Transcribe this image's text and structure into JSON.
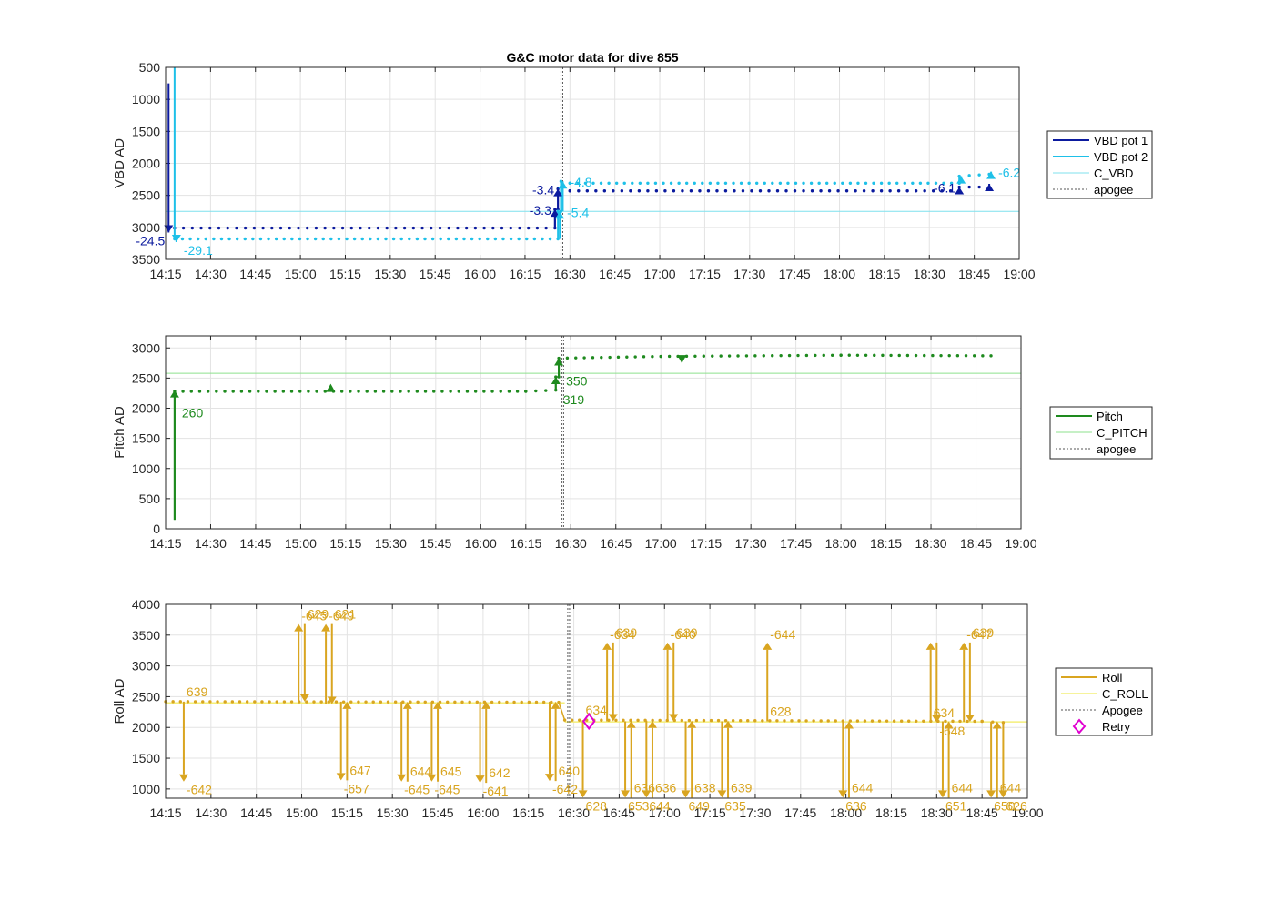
{
  "title": "G&C motor data for dive 855",
  "x_tick_labels": [
    "14:15",
    "14:30",
    "14:45",
    "15:00",
    "15:15",
    "15:30",
    "15:45",
    "16:00",
    "16:15",
    "16:30",
    "16:45",
    "17:00",
    "17:15",
    "17:30",
    "17:45",
    "18:00",
    "18:15",
    "18:30",
    "18:45",
    "19:00"
  ],
  "colors": {
    "vbd1": "#0b1a9e",
    "vbd2": "#1ec0e8",
    "cvbd": "#7fe1ee",
    "pitch": "#1e8a1e",
    "cpitch": "#8ee08e",
    "roll": "#d9a520",
    "croll": "#f4ef7a",
    "retry": "#e000d0",
    "apogee": "#555555"
  },
  "chart_data": [
    {
      "type": "line",
      "title": "G&C motor data for dive 855",
      "ylabel": "VBD AD",
      "x_range": [
        "14:15",
        "19:00"
      ],
      "y_range": [
        500,
        3500
      ],
      "y_reversed": true,
      "y_ticks": [
        500,
        1000,
        1500,
        2000,
        2500,
        3000,
        3500
      ],
      "grid": true,
      "apogee": "16:27",
      "legend": {
        "placement": "right",
        "entries": [
          "VBD pot 1",
          "VBD pot 2",
          "C_VBD",
          "apogee"
        ]
      },
      "reference": {
        "name": "C_VBD",
        "value": 2750
      },
      "series": [
        {
          "name": "VBD pot 1",
          "points": [
            [
              "14:16",
              750
            ],
            [
              "14:16",
              3000
            ],
            [
              "14:18",
              3010
            ],
            [
              "16:25",
              3010
            ],
            [
              "16:25",
              2720
            ],
            [
              "16:26",
              2720
            ],
            [
              "16:26",
              2400
            ],
            [
              "16:30",
              2430
            ],
            [
              "18:40",
              2430
            ],
            [
              "18:40",
              2370
            ],
            [
              "18:50",
              2370
            ]
          ]
        },
        {
          "name": "VBD pot 2",
          "points": [
            [
              "14:18",
              500
            ],
            [
              "14:18",
              3180
            ],
            [
              "16:26",
              3180
            ],
            [
              "16:26",
              2750
            ],
            [
              "16:27",
              2750
            ],
            [
              "16:27",
              2280
            ],
            [
              "16:30",
              2310
            ],
            [
              "18:40",
              2310
            ],
            [
              "18:40",
              2200
            ],
            [
              "18:50",
              2170
            ]
          ]
        }
      ],
      "arrows": [
        {
          "series": 0,
          "x": "14:16",
          "from": 3000,
          "to": 3080,
          "label": "-24.5"
        },
        {
          "series": 1,
          "x": "14:18",
          "from": 3180,
          "to": 3230,
          "label": "-29.1"
        },
        {
          "series": 0,
          "x": "16:25",
          "from": 3010,
          "to": 2720,
          "label": "-3.3"
        },
        {
          "series": 0,
          "x": "16:26",
          "from": 2720,
          "to": 2400,
          "label": "-3.4"
        },
        {
          "series": 1,
          "x": "16:26",
          "from": 3180,
          "to": 2750,
          "label": "-5.4"
        },
        {
          "series": 1,
          "x": "16:27",
          "from": 2750,
          "to": 2280,
          "label": "-4.8"
        },
        {
          "series": 0,
          "x": "18:40",
          "from": 2430,
          "to": 2370,
          "label": "-6.1"
        },
        {
          "series": 1,
          "x": "18:40",
          "from": 2310,
          "to": 2200,
          "label": ""
        },
        {
          "series": 0,
          "x": "18:50",
          "from": 2370,
          "to": 2320,
          "label": ""
        },
        {
          "series": 1,
          "x": "18:50",
          "from": 2170,
          "to": 2130,
          "label": "-6.2"
        }
      ]
    },
    {
      "type": "line",
      "ylabel": "Pitch AD",
      "x_range": [
        "14:15",
        "19:00"
      ],
      "y_range": [
        0,
        3200
      ],
      "y_ticks": [
        0,
        500,
        1000,
        1500,
        2000,
        2500,
        3000
      ],
      "grid": true,
      "apogee": "16:27",
      "legend": {
        "placement": "right",
        "entries": [
          "Pitch",
          "C_PITCH",
          "apogee"
        ]
      },
      "reference": {
        "name": "C_PITCH",
        "value": 2580
      },
      "series": [
        {
          "name": "Pitch",
          "points": [
            [
              "14:18",
              150
            ],
            [
              "14:18",
              2280
            ],
            [
              "16:15",
              2280
            ],
            [
              "16:25",
              2300
            ],
            [
              "16:25",
              2520
            ],
            [
              "16:26",
              2520
            ],
            [
              "16:26",
              2830
            ],
            [
              "17:00",
              2860
            ],
            [
              "18:00",
              2880
            ],
            [
              "18:50",
              2870
            ]
          ]
        }
      ],
      "arrows": [
        {
          "x": "14:18",
          "from": 150,
          "to": 2300,
          "label": "260"
        },
        {
          "x": "16:25",
          "from": 2300,
          "to": 2520,
          "label": "319"
        },
        {
          "x": "16:26",
          "from": 2520,
          "to": 2830,
          "label": "350"
        }
      ],
      "markers": [
        {
          "x": "15:10",
          "y": 2330,
          "dir": "up"
        },
        {
          "x": "17:07",
          "y": 2820,
          "dir": "down"
        }
      ]
    },
    {
      "type": "line",
      "ylabel": "Roll AD",
      "x_range": [
        "14:15",
        "19:00"
      ],
      "y_range": [
        850,
        4000
      ],
      "y_ticks": [
        1000,
        1500,
        2000,
        2500,
        3000,
        3500,
        4000
      ],
      "grid": true,
      "apogee": "16:28",
      "legend": {
        "placement": "right",
        "entries": [
          "Roll",
          "C_ROLL",
          "Apogee",
          "Retry"
        ]
      },
      "reference_segments": [
        {
          "name": "C_ROLL",
          "from": "14:15",
          "to": "16:27",
          "value": 2400
        },
        {
          "name": "C_ROLL",
          "from": "16:27",
          "to": "19:00",
          "value": 2090
        }
      ],
      "baseline": [
        [
          "14:15",
          2420
        ],
        [
          "16:25",
          2410
        ],
        [
          "16:27",
          2120
        ],
        [
          "18:45",
          2100
        ],
        [
          "18:52",
          2080
        ]
      ],
      "moves": [
        {
          "x": "14:21",
          "start": 2420,
          "end": 1120,
          "label_start": "639",
          "label_end": "-642"
        },
        {
          "x": "14:59",
          "start": 2420,
          "end": 3680,
          "label_start": "",
          "label_end": "-645"
        },
        {
          "x": "15:01",
          "start": 3680,
          "end": 2420,
          "label_start": "629",
          "label_end": ""
        },
        {
          "x": "15:08",
          "start": 2380,
          "end": 3680,
          "label_start": "",
          "label_end": "-649"
        },
        {
          "x": "15:10",
          "start": 3680,
          "end": 2380,
          "label_start": "621",
          "label_end": ""
        },
        {
          "x": "15:13",
          "start": 2420,
          "end": 1140,
          "label_start": "",
          "label_end": "-657"
        },
        {
          "x": "15:15",
          "start": 1140,
          "end": 2420,
          "label_start": "647",
          "label_end": ""
        },
        {
          "x": "15:33",
          "start": 2420,
          "end": 1120,
          "label_start": "",
          "label_end": "-645"
        },
        {
          "x": "15:35",
          "start": 1120,
          "end": 2420,
          "label_start": "644",
          "label_end": ""
        },
        {
          "x": "15:43",
          "start": 2420,
          "end": 1120,
          "label_start": "",
          "label_end": "-645"
        },
        {
          "x": "15:45",
          "start": 1120,
          "end": 2420,
          "label_start": "645",
          "label_end": ""
        },
        {
          "x": "15:59",
          "start": 2420,
          "end": 1100,
          "label_start": "",
          "label_end": "-641"
        },
        {
          "x": "16:01",
          "start": 1100,
          "end": 2420,
          "label_start": "642",
          "label_end": ""
        },
        {
          "x": "16:22",
          "start": 2420,
          "end": 1130,
          "label_start": "",
          "label_end": "-642"
        },
        {
          "x": "16:24",
          "start": 1130,
          "end": 2420,
          "label_start": "640",
          "label_end": ""
        },
        {
          "x": "16:33",
          "start": 2120,
          "end": 860,
          "label_start": "634",
          "label_end": "628"
        },
        {
          "x": "16:41",
          "start": 2100,
          "end": 3380,
          "label_start": "",
          "label_end": "-634"
        },
        {
          "x": "16:43",
          "start": 3380,
          "end": 2100,
          "label_start": "639",
          "label_end": ""
        },
        {
          "x": "16:47",
          "start": 2100,
          "end": 860,
          "label_start": "",
          "label_end": "653"
        },
        {
          "x": "16:49",
          "start": 860,
          "end": 2110,
          "label_start": "636",
          "label_end": ""
        },
        {
          "x": "16:54",
          "start": 2110,
          "end": 860,
          "label_start": "",
          "label_end": "644"
        },
        {
          "x": "16:56",
          "start": 860,
          "end": 2110,
          "label_start": "636",
          "label_end": ""
        },
        {
          "x": "17:01",
          "start": 2100,
          "end": 3380,
          "label_start": "",
          "label_end": "-640"
        },
        {
          "x": "17:03",
          "start": 3380,
          "end": 2100,
          "label_start": "639",
          "label_end": ""
        },
        {
          "x": "17:07",
          "start": 2100,
          "end": 860,
          "label_start": "",
          "label_end": "649"
        },
        {
          "x": "17:09",
          "start": 860,
          "end": 2110,
          "label_start": "638",
          "label_end": ""
        },
        {
          "x": "17:19",
          "start": 2100,
          "end": 860,
          "label_start": "",
          "label_end": "635"
        },
        {
          "x": "17:21",
          "start": 860,
          "end": 2110,
          "label_start": "639",
          "label_end": ""
        },
        {
          "x": "17:34",
          "start": 2100,
          "end": 3380,
          "label_start": "628",
          "label_end": "-644"
        },
        {
          "x": "17:59",
          "start": 2100,
          "end": 860,
          "label_start": "",
          "label_end": "636"
        },
        {
          "x": "18:01",
          "start": 860,
          "end": 2100,
          "label_start": "644",
          "label_end": ""
        },
        {
          "x": "18:28",
          "start": 2080,
          "end": 3380,
          "label_start": "634",
          "label_end": ""
        },
        {
          "x": "18:30",
          "start": 3380,
          "end": 2080,
          "label_start": "",
          "label_end": "-648"
        },
        {
          "x": "18:32",
          "start": 2100,
          "end": 860,
          "label_start": "",
          "label_end": "651"
        },
        {
          "x": "18:34",
          "start": 860,
          "end": 2100,
          "label_start": "644",
          "label_end": ""
        },
        {
          "x": "18:39",
          "start": 2090,
          "end": 3380,
          "label_start": "",
          "label_end": "-647"
        },
        {
          "x": "18:41",
          "start": 3380,
          "end": 2090,
          "label_start": "639",
          "label_end": ""
        },
        {
          "x": "18:48",
          "start": 2090,
          "end": 860,
          "label_start": "",
          "label_end": "650"
        },
        {
          "x": "18:50",
          "start": 860,
          "end": 2100,
          "label_start": "644",
          "label_end": ""
        },
        {
          "x": "18:52",
          "start": 2100,
          "end": 860,
          "label_start": "",
          "label_end": "626"
        }
      ],
      "retry": [
        {
          "x": "16:35",
          "y": 2100
        }
      ]
    }
  ]
}
